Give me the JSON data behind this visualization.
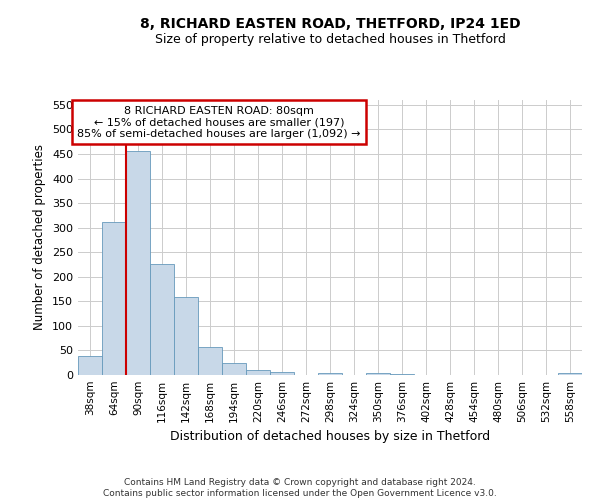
{
  "title": "8, RICHARD EASTEN ROAD, THETFORD, IP24 1ED",
  "subtitle": "Size of property relative to detached houses in Thetford",
  "xlabel": "Distribution of detached houses by size in Thetford",
  "ylabel": "Number of detached properties",
  "categories": [
    "38sqm",
    "64sqm",
    "90sqm",
    "116sqm",
    "142sqm",
    "168sqm",
    "194sqm",
    "220sqm",
    "246sqm",
    "272sqm",
    "298sqm",
    "324sqm",
    "350sqm",
    "376sqm",
    "402sqm",
    "428sqm",
    "454sqm",
    "480sqm",
    "506sqm",
    "532sqm",
    "558sqm"
  ],
  "values": [
    38,
    311,
    456,
    226,
    158,
    58,
    24,
    10,
    7,
    0,
    5,
    0,
    5,
    3,
    0,
    0,
    0,
    0,
    0,
    0,
    4
  ],
  "bar_color": "#c8d8e8",
  "bar_edge_color": "#6699bb",
  "property_line_x": 1.5,
  "annotation_text": "8 RICHARD EASTEN ROAD: 80sqm\n← 15% of detached houses are smaller (197)\n85% of semi-detached houses are larger (1,092) →",
  "annotation_box_color": "#ffffff",
  "annotation_box_edge_color": "#cc0000",
  "property_line_color": "#cc0000",
  "ylim": [
    0,
    560
  ],
  "yticks": [
    0,
    50,
    100,
    150,
    200,
    250,
    300,
    350,
    400,
    450,
    500,
    550
  ],
  "footnote": "Contains HM Land Registry data © Crown copyright and database right 2024.\nContains public sector information licensed under the Open Government Licence v3.0.",
  "background_color": "#ffffff",
  "grid_color": "#cccccc"
}
